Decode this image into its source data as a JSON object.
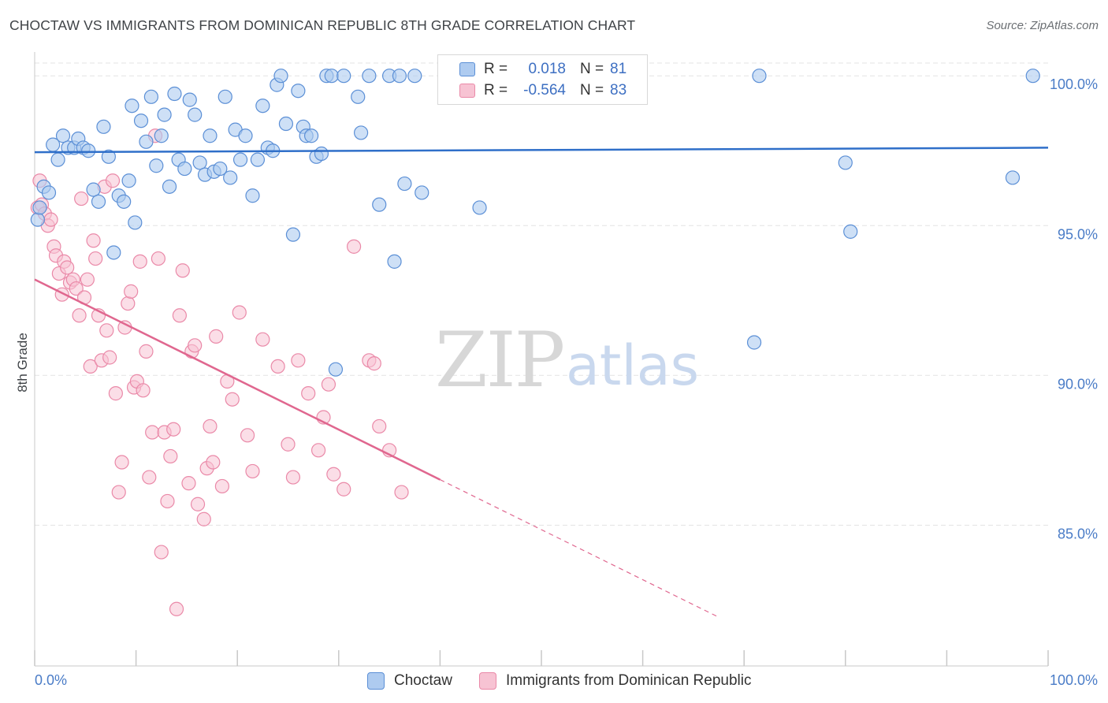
{
  "title": "CHOCTAW VS IMMIGRANTS FROM DOMINICAN REPUBLIC 8TH GRADE CORRELATION CHART",
  "source": "Source: ZipAtlas.com",
  "ylabel": "8th Grade",
  "watermark": {
    "zip": "ZIP",
    "atlas": "atlas"
  },
  "legend": {
    "rows": [
      {
        "r_label": "R =",
        "r_value": "0.018",
        "n_label": "N =",
        "n_value": "81"
      },
      {
        "r_label": "R =",
        "r_value": "-0.564",
        "n_label": "N =",
        "n_value": "83"
      }
    ]
  },
  "bottom_legend": [
    "Choctaw",
    "Immigrants from Dominican Republic"
  ],
  "colors": {
    "blue_fill": "#aecbf0",
    "blue_stroke": "#5b8fd6",
    "blue_line": "#2f6fc9",
    "pink_fill": "#f7c3d3",
    "pink_stroke": "#ea89a8",
    "pink_line": "#e0678f",
    "grid": "#e3e3e3",
    "tick_text": "#4a7cc7"
  },
  "chart_data": {
    "type": "scatter",
    "title": "CHOCTAW VS IMMIGRANTS FROM DOMINICAN REPUBLIC 8TH GRADE CORRELATION CHART",
    "xlabel": "",
    "ylabel": "8th Grade",
    "xlim": [
      0,
      100
    ],
    "ylim": [
      80.3,
      100.9
    ],
    "x_tick_labels": [
      "0.0%",
      "100.0%"
    ],
    "y_ticks": [
      85,
      90,
      95,
      100
    ],
    "y_tick_labels": [
      "85.0%",
      "90.0%",
      "95.0%",
      "100.0%"
    ],
    "grid": true,
    "legend_position": "top-center",
    "series": [
      {
        "name": "Choctaw",
        "color": "#5b8fd6",
        "trend": {
          "x0": 0,
          "y0": 97.45,
          "x1": 100,
          "y1": 97.6,
          "solid_to": 100
        },
        "points": [
          [
            0.3,
            95.2
          ],
          [
            0.5,
            95.6
          ],
          [
            0.9,
            96.3
          ],
          [
            1.4,
            96.1
          ],
          [
            1.8,
            97.7
          ],
          [
            2.3,
            97.2
          ],
          [
            2.8,
            98.0
          ],
          [
            3.3,
            97.6
          ],
          [
            3.9,
            97.6
          ],
          [
            4.3,
            97.9
          ],
          [
            4.8,
            97.6
          ],
          [
            5.3,
            97.5
          ],
          [
            5.8,
            96.2
          ],
          [
            6.3,
            95.8
          ],
          [
            6.8,
            98.3
          ],
          [
            7.3,
            97.3
          ],
          [
            7.8,
            94.1
          ],
          [
            8.3,
            96.0
          ],
          [
            8.8,
            95.8
          ],
          [
            9.3,
            96.5
          ],
          [
            9.6,
            99.0
          ],
          [
            9.9,
            95.1
          ],
          [
            10.5,
            98.5
          ],
          [
            11.0,
            97.8
          ],
          [
            11.5,
            99.3
          ],
          [
            12.0,
            97.0
          ],
          [
            12.5,
            98.0
          ],
          [
            12.8,
            98.7
          ],
          [
            13.3,
            96.3
          ],
          [
            13.8,
            99.4
          ],
          [
            14.2,
            97.2
          ],
          [
            14.8,
            96.9
          ],
          [
            15.3,
            99.2
          ],
          [
            15.8,
            98.7
          ],
          [
            16.3,
            97.1
          ],
          [
            16.8,
            96.7
          ],
          [
            17.3,
            98.0
          ],
          [
            17.7,
            96.8
          ],
          [
            18.3,
            96.9
          ],
          [
            18.8,
            99.3
          ],
          [
            19.3,
            96.6
          ],
          [
            19.8,
            98.2
          ],
          [
            20.3,
            97.2
          ],
          [
            20.8,
            98.0
          ],
          [
            21.5,
            96.0
          ],
          [
            22.0,
            97.2
          ],
          [
            22.5,
            99.0
          ],
          [
            23.0,
            97.6
          ],
          [
            23.5,
            97.5
          ],
          [
            23.9,
            99.7
          ],
          [
            24.3,
            100.0
          ],
          [
            24.8,
            98.4
          ],
          [
            25.5,
            94.7
          ],
          [
            26.0,
            99.5
          ],
          [
            26.5,
            98.3
          ],
          [
            26.8,
            98.0
          ],
          [
            27.3,
            98.0
          ],
          [
            27.8,
            97.3
          ],
          [
            28.3,
            97.4
          ],
          [
            28.8,
            100.0
          ],
          [
            29.3,
            100.0
          ],
          [
            29.7,
            90.2
          ],
          [
            30.5,
            100.0
          ],
          [
            31.9,
            99.3
          ],
          [
            32.2,
            98.1
          ],
          [
            33.0,
            100.0
          ],
          [
            34.0,
            95.7
          ],
          [
            35.0,
            100.0
          ],
          [
            35.5,
            93.8
          ],
          [
            36.0,
            100.0
          ],
          [
            36.5,
            96.4
          ],
          [
            37.5,
            100.0
          ],
          [
            38.2,
            96.1
          ],
          [
            43.9,
            95.6
          ],
          [
            47.0,
            100.0
          ],
          [
            71.0,
            91.1
          ],
          [
            71.5,
            100.0
          ],
          [
            80.0,
            97.1
          ],
          [
            80.5,
            94.8
          ],
          [
            96.5,
            96.6
          ],
          [
            98.5,
            100.0
          ]
        ]
      },
      {
        "name": "Immigrants from Dominican Republic",
        "color": "#ea89a8",
        "trend": {
          "x0": 0,
          "y0": 93.2,
          "x1": 100,
          "y1": 76.5,
          "solid_to": 40,
          "dashed_to": 67.5
        },
        "points": [
          [
            0.3,
            95.6
          ],
          [
            0.5,
            96.5
          ],
          [
            0.7,
            95.7
          ],
          [
            1.0,
            95.4
          ],
          [
            1.3,
            95.0
          ],
          [
            1.6,
            95.2
          ],
          [
            1.9,
            94.3
          ],
          [
            2.1,
            94.0
          ],
          [
            2.4,
            93.4
          ],
          [
            2.7,
            92.7
          ],
          [
            2.9,
            93.8
          ],
          [
            3.2,
            93.6
          ],
          [
            3.5,
            93.1
          ],
          [
            3.8,
            93.2
          ],
          [
            4.1,
            92.9
          ],
          [
            4.4,
            92.0
          ],
          [
            4.6,
            95.9
          ],
          [
            4.9,
            92.6
          ],
          [
            5.2,
            93.2
          ],
          [
            5.5,
            90.3
          ],
          [
            5.8,
            94.5
          ],
          [
            6.0,
            93.9
          ],
          [
            6.3,
            92.0
          ],
          [
            6.6,
            90.5
          ],
          [
            6.9,
            96.3
          ],
          [
            7.1,
            91.5
          ],
          [
            7.4,
            90.6
          ],
          [
            7.7,
            96.5
          ],
          [
            8.0,
            89.4
          ],
          [
            8.3,
            86.1
          ],
          [
            8.6,
            87.1
          ],
          [
            8.9,
            91.6
          ],
          [
            9.2,
            92.4
          ],
          [
            9.5,
            92.8
          ],
          [
            9.8,
            89.6
          ],
          [
            10.1,
            89.8
          ],
          [
            10.4,
            93.8
          ],
          [
            10.7,
            89.5
          ],
          [
            11.0,
            90.8
          ],
          [
            11.3,
            86.6
          ],
          [
            11.6,
            88.1
          ],
          [
            11.9,
            98.0
          ],
          [
            12.2,
            93.9
          ],
          [
            12.5,
            84.1
          ],
          [
            12.8,
            88.1
          ],
          [
            13.1,
            85.8
          ],
          [
            13.4,
            87.3
          ],
          [
            13.7,
            88.2
          ],
          [
            14.0,
            82.2
          ],
          [
            14.3,
            92.0
          ],
          [
            14.6,
            93.5
          ],
          [
            15.2,
            86.4
          ],
          [
            15.5,
            90.8
          ],
          [
            15.8,
            91.0
          ],
          [
            16.1,
            85.7
          ],
          [
            16.7,
            85.2
          ],
          [
            17.0,
            86.9
          ],
          [
            17.3,
            88.3
          ],
          [
            17.6,
            87.1
          ],
          [
            17.9,
            91.3
          ],
          [
            18.5,
            86.3
          ],
          [
            19.0,
            89.8
          ],
          [
            19.5,
            89.2
          ],
          [
            20.2,
            92.1
          ],
          [
            21.0,
            88.0
          ],
          [
            21.5,
            86.8
          ],
          [
            22.5,
            91.2
          ],
          [
            24.0,
            90.3
          ],
          [
            25.0,
            87.7
          ],
          [
            25.5,
            86.6
          ],
          [
            26.0,
            90.5
          ],
          [
            27.0,
            89.4
          ],
          [
            28.0,
            87.5
          ],
          [
            28.5,
            88.6
          ],
          [
            29.0,
            89.7
          ],
          [
            29.5,
            86.7
          ],
          [
            30.5,
            86.2
          ],
          [
            33.0,
            90.5
          ],
          [
            33.5,
            90.4
          ],
          [
            34.0,
            88.3
          ],
          [
            35.0,
            87.5
          ],
          [
            36.2,
            86.1
          ],
          [
            31.5,
            94.3
          ]
        ]
      }
    ]
  }
}
